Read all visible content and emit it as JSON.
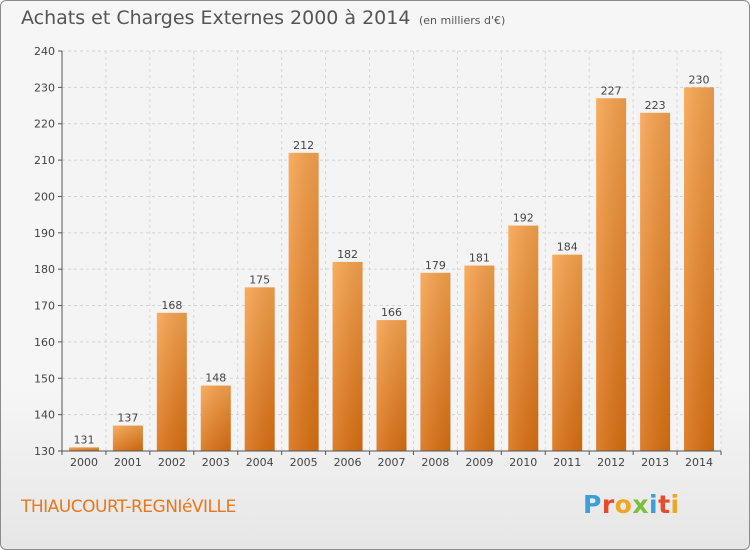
{
  "header": {
    "title": "Achats et Charges Externes 2000 à 2014",
    "unit": "(en milliers d'€)"
  },
  "footer": {
    "commune": "THIAUCOURT-REGNIéVILLE",
    "logo": "Proxiti",
    "logo_colors": [
      "#3aa0d8",
      "#e84a2b",
      "#f2a51f",
      "#7bbf3a",
      "#3aa0d8",
      "#e84a2b",
      "#f2a51f"
    ]
  },
  "chart_data": {
    "type": "bar",
    "title": "Achats et Charges Externes 2000 à 2014",
    "subtitle": "(en milliers d'€)",
    "categories": [
      "2000",
      "2001",
      "2002",
      "2003",
      "2004",
      "2005",
      "2006",
      "2007",
      "2008",
      "2009",
      "2010",
      "2011",
      "2012",
      "2013",
      "2014"
    ],
    "values": [
      131,
      137,
      168,
      148,
      175,
      212,
      182,
      166,
      179,
      181,
      192,
      184,
      227,
      223,
      230
    ],
    "ylim": [
      130,
      240
    ],
    "yticks": [
      130,
      140,
      150,
      160,
      170,
      180,
      190,
      200,
      210,
      220,
      230,
      240
    ],
    "grid": true,
    "bar_color": "#f0892c",
    "xlabel": "",
    "ylabel": ""
  }
}
